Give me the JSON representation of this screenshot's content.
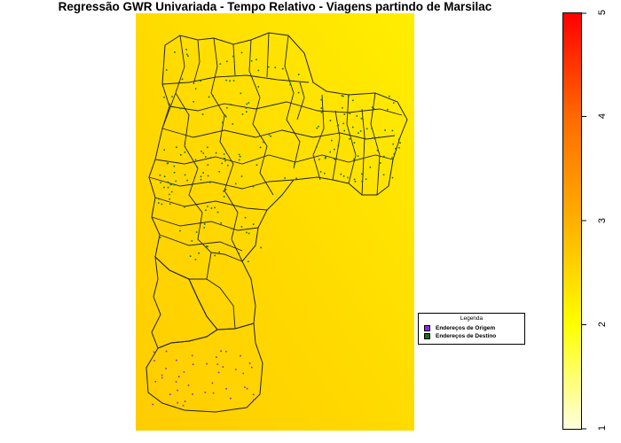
{
  "title": "Regressão GWR Univariada - Tempo Relativo - Viagens partindo de Marsilac",
  "legend": {
    "title": "Legenda",
    "items": [
      {
        "label": "Endereços de Origem",
        "color": "#8a2be2"
      },
      {
        "label": "Endereços de Destino",
        "color": "#1a6b1a"
      }
    ]
  },
  "colorbar": {
    "ticks": [
      "1",
      "2",
      "3",
      "4",
      "5"
    ],
    "min": 1,
    "max": 5,
    "colors": [
      "#ffffe0",
      "#ffff00",
      "#ffb000",
      "#ff6a00",
      "#ff0000"
    ]
  },
  "map": {
    "background_colors": [
      "#ffcf00",
      "#ffe600",
      "#ffd800"
    ],
    "boundary_color": "#222222",
    "origin_point_color": "#8a2be2",
    "destination_point_color": "#1a6b1a"
  }
}
